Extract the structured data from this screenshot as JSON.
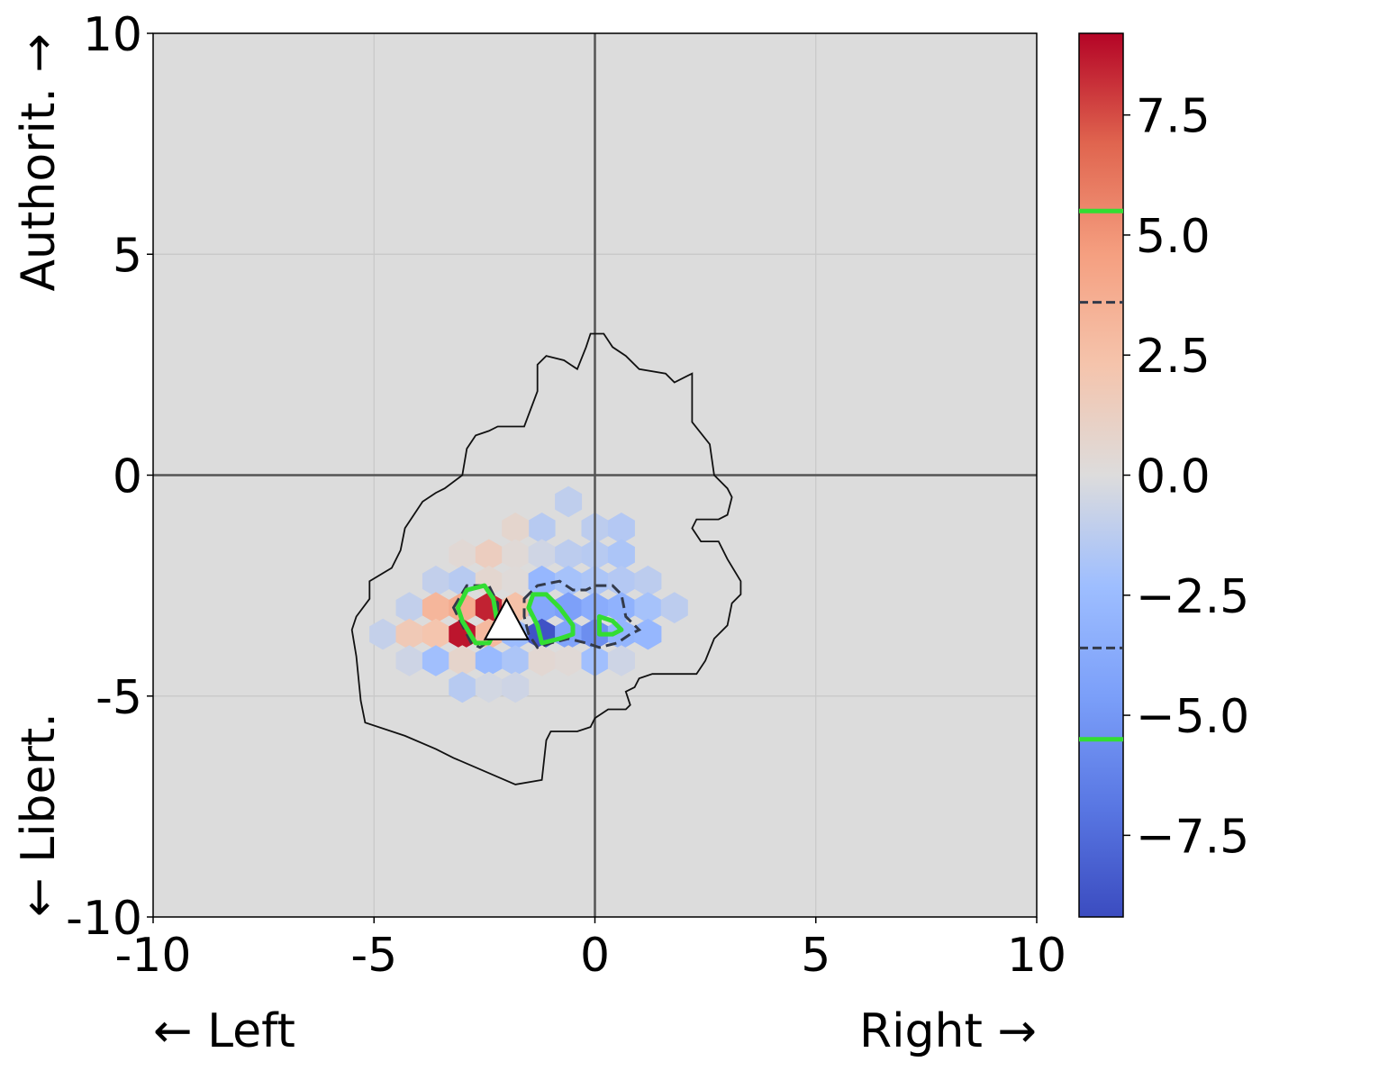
{
  "chart_data": {
    "type": "hexbin",
    "title": "",
    "xlim": [
      -10,
      10
    ],
    "ylim": [
      -10,
      10
    ],
    "grid": true,
    "x_ticks": [
      "-10",
      "-5",
      "0",
      "5",
      "10"
    ],
    "y_ticks": [
      "-10",
      "-5",
      "0",
      "5",
      "10"
    ],
    "x_tick_values": [
      -10,
      -5,
      0,
      5,
      10
    ],
    "y_tick_values": [
      -10,
      -5,
      0,
      5,
      10
    ],
    "xlabel_left": "← Left",
    "xlabel_right": "Right →",
    "ylabel_top": "Authorit. →",
    "ylabel_bottom": "← Libert.",
    "colorbar": {
      "colormap": "coolwarm",
      "range": [
        -9.2,
        9.2
      ],
      "tick_labels": [
        "7.5",
        "5.0",
        "2.5",
        "0.0",
        "−2.5",
        "−5.0",
        "−7.5"
      ],
      "tick_values": [
        7.5,
        5.0,
        2.5,
        0.0,
        -2.5,
        -5.0,
        -7.5
      ],
      "green_levels": [
        5.5,
        -5.5
      ],
      "dashed_levels": [
        3.6,
        -3.6
      ]
    },
    "colors": {
      "background": "#dcdcdc",
      "contour_green": "#33dd33",
      "contour_dashed": "#333a4a",
      "outline": "#111111",
      "axis_lines": "#555555"
    },
    "hexbins": [
      {
        "x": -0.6,
        "y": -0.6,
        "v": -1.1
      },
      {
        "x": -1.2,
        "y": -1.2,
        "v": -1.4
      },
      {
        "x": 0.0,
        "y": -1.2,
        "v": -1.2
      },
      {
        "x": 0.6,
        "y": -1.2,
        "v": -1.5
      },
      {
        "x": -1.8,
        "y": -1.2,
        "v": 0.7
      },
      {
        "x": -3.0,
        "y": -1.8,
        "v": 0.4
      },
      {
        "x": -2.4,
        "y": -1.8,
        "v": 1.4
      },
      {
        "x": -1.8,
        "y": -1.8,
        "v": 0.3
      },
      {
        "x": -1.2,
        "y": -1.8,
        "v": -0.5
      },
      {
        "x": -0.6,
        "y": -1.8,
        "v": -1.2
      },
      {
        "x": 0.0,
        "y": -1.8,
        "v": -1.4
      },
      {
        "x": 0.6,
        "y": -1.8,
        "v": -1.8
      },
      {
        "x": -3.6,
        "y": -2.4,
        "v": -1.0
      },
      {
        "x": -3.0,
        "y": -2.4,
        "v": -1.4
      },
      {
        "x": -2.4,
        "y": -2.4,
        "v": 0.6
      },
      {
        "x": -1.8,
        "y": -2.4,
        "v": 0.2
      },
      {
        "x": -1.2,
        "y": -2.4,
        "v": -2.8
      },
      {
        "x": -0.6,
        "y": -2.4,
        "v": -2.0
      },
      {
        "x": 0.0,
        "y": -2.4,
        "v": -1.8
      },
      {
        "x": 0.6,
        "y": -2.4,
        "v": -1.5
      },
      {
        "x": 1.2,
        "y": -2.4,
        "v": -1.2
      },
      {
        "x": -4.2,
        "y": -3.0,
        "v": -1.0
      },
      {
        "x": -3.6,
        "y": -3.0,
        "v": 3.2
      },
      {
        "x": -3.0,
        "y": -3.0,
        "v": 3.8
      },
      {
        "x": -2.4,
        "y": -3.0,
        "v": 8.5
      },
      {
        "x": -1.8,
        "y": -3.0,
        "v": 2.5
      },
      {
        "x": -1.2,
        "y": -3.0,
        "v": -4.0
      },
      {
        "x": -0.6,
        "y": -3.0,
        "v": -4.5
      },
      {
        "x": 0.0,
        "y": -3.0,
        "v": -3.6
      },
      {
        "x": 0.6,
        "y": -3.0,
        "v": -3.2
      },
      {
        "x": 1.2,
        "y": -3.0,
        "v": -2.0
      },
      {
        "x": 1.8,
        "y": -3.0,
        "v": -1.2
      },
      {
        "x": -4.8,
        "y": -3.6,
        "v": -0.9
      },
      {
        "x": -4.2,
        "y": -3.6,
        "v": 1.8
      },
      {
        "x": -3.6,
        "y": -3.6,
        "v": 2.2
      },
      {
        "x": -3.0,
        "y": -3.6,
        "v": 8.8
      },
      {
        "x": -2.4,
        "y": -3.6,
        "v": 3.0
      },
      {
        "x": -1.8,
        "y": -3.6,
        "v": -2.5
      },
      {
        "x": -1.2,
        "y": -3.6,
        "v": -8.8
      },
      {
        "x": -0.6,
        "y": -3.6,
        "v": -4.2
      },
      {
        "x": 0.0,
        "y": -3.6,
        "v": -5.6
      },
      {
        "x": 0.6,
        "y": -3.6,
        "v": -3.0
      },
      {
        "x": 1.2,
        "y": -3.6,
        "v": -2.8
      },
      {
        "x": -4.2,
        "y": -4.2,
        "v": -0.6
      },
      {
        "x": -3.6,
        "y": -4.2,
        "v": -2.2
      },
      {
        "x": -3.0,
        "y": -4.2,
        "v": 0.8
      },
      {
        "x": -2.4,
        "y": -4.2,
        "v": -2.6
      },
      {
        "x": -1.8,
        "y": -4.2,
        "v": -1.8
      },
      {
        "x": -1.2,
        "y": -4.2,
        "v": 0.5
      },
      {
        "x": -0.6,
        "y": -4.2,
        "v": 0.3
      },
      {
        "x": 0.0,
        "y": -4.2,
        "v": -2.2
      },
      {
        "x": 0.6,
        "y": -4.2,
        "v": -0.6
      },
      {
        "x": -3.0,
        "y": -4.8,
        "v": -1.4
      },
      {
        "x": -2.4,
        "y": -4.8,
        "v": -0.4
      },
      {
        "x": -1.8,
        "y": -4.8,
        "v": -0.6
      }
    ],
    "region_outline": [
      [
        -1.2,
        -6.9
      ],
      [
        -1.8,
        -7.0
      ],
      [
        -3.2,
        -6.4
      ],
      [
        -3.6,
        -6.2
      ],
      [
        -4.3,
        -5.9
      ],
      [
        -5.2,
        -5.6
      ],
      [
        -5.3,
        -5.1
      ],
      [
        -5.4,
        -4.1
      ],
      [
        -5.5,
        -3.5
      ],
      [
        -5.4,
        -3.2
      ],
      [
        -5.1,
        -2.8
      ],
      [
        -5.1,
        -2.4
      ],
      [
        -4.6,
        -2.1
      ],
      [
        -4.4,
        -1.7
      ],
      [
        -4.3,
        -1.2
      ],
      [
        -4.1,
        -0.9
      ],
      [
        -3.9,
        -0.6
      ],
      [
        -3.6,
        -0.4
      ],
      [
        -3.4,
        -0.3
      ],
      [
        -3.0,
        0.0
      ],
      [
        -2.9,
        0.6
      ],
      [
        -2.7,
        0.9
      ],
      [
        -2.4,
        1.0
      ],
      [
        -2.2,
        1.1
      ],
      [
        -1.6,
        1.1
      ],
      [
        -1.3,
        1.9
      ],
      [
        -1.3,
        2.5
      ],
      [
        -1.1,
        2.7
      ],
      [
        -0.7,
        2.6
      ],
      [
        -0.4,
        2.4
      ],
      [
        -0.2,
        2.9
      ],
      [
        -0.1,
        3.2
      ],
      [
        0.2,
        3.2
      ],
      [
        0.4,
        2.9
      ],
      [
        0.7,
        2.7
      ],
      [
        1.0,
        2.4
      ],
      [
        1.6,
        2.3
      ],
      [
        1.8,
        2.1
      ],
      [
        2.2,
        2.3
      ],
      [
        2.2,
        1.2
      ],
      [
        2.6,
        0.7
      ],
      [
        2.7,
        0.0
      ],
      [
        3.0,
        -0.3
      ],
      [
        3.1,
        -0.5
      ],
      [
        3.0,
        -0.9
      ],
      [
        2.8,
        -1.0
      ],
      [
        2.3,
        -1.0
      ],
      [
        2.2,
        -1.2
      ],
      [
        2.4,
        -1.5
      ],
      [
        2.8,
        -1.5
      ],
      [
        3.0,
        -1.9
      ],
      [
        3.3,
        -2.4
      ],
      [
        3.3,
        -2.7
      ],
      [
        3.1,
        -2.9
      ],
      [
        3.0,
        -3.4
      ],
      [
        2.7,
        -3.7
      ],
      [
        2.5,
        -4.2
      ],
      [
        2.3,
        -4.5
      ],
      [
        1.6,
        -4.5
      ],
      [
        1.3,
        -4.5
      ],
      [
        1.0,
        -4.6
      ],
      [
        0.9,
        -4.8
      ],
      [
        0.7,
        -4.9
      ],
      [
        0.8,
        -5.2
      ],
      [
        0.7,
        -5.3
      ],
      [
        0.3,
        -5.3
      ],
      [
        0.0,
        -5.5
      ],
      [
        -0.1,
        -5.7
      ],
      [
        -0.4,
        -5.8
      ],
      [
        -1.0,
        -5.8
      ],
      [
        -1.1,
        -6.0
      ],
      [
        -1.2,
        -6.9
      ]
    ],
    "green_contours": [
      [
        [
          -3.1,
          -3.0
        ],
        [
          -2.9,
          -2.6
        ],
        [
          -2.5,
          -2.5
        ],
        [
          -2.3,
          -2.8
        ],
        [
          -2.2,
          -3.4
        ],
        [
          -2.4,
          -3.8
        ],
        [
          -2.7,
          -3.8
        ],
        [
          -3.0,
          -3.3
        ],
        [
          -3.1,
          -3.0
        ]
      ],
      [
        [
          -1.4,
          -2.7
        ],
        [
          -1.1,
          -2.7
        ],
        [
          -0.8,
          -3.0
        ],
        [
          -0.5,
          -3.4
        ],
        [
          -0.5,
          -3.6
        ],
        [
          -0.8,
          -3.7
        ],
        [
          -1.2,
          -3.8
        ],
        [
          -1.3,
          -3.4
        ],
        [
          -1.5,
          -3.0
        ],
        [
          -1.4,
          -2.7
        ]
      ],
      [
        [
          0.1,
          -3.2
        ],
        [
          0.4,
          -3.3
        ],
        [
          0.6,
          -3.5
        ],
        [
          0.4,
          -3.6
        ],
        [
          0.1,
          -3.6
        ],
        [
          0.1,
          -3.2
        ]
      ]
    ],
    "dashed_contours": [
      [
        [
          -3.2,
          -3.0
        ],
        [
          -2.9,
          -2.5
        ],
        [
          -2.4,
          -2.5
        ],
        [
          -2.2,
          -2.9
        ],
        [
          -2.2,
          -3.6
        ],
        [
          -2.6,
          -3.9
        ],
        [
          -2.8,
          -3.8
        ],
        [
          -3.2,
          -3.0
        ]
      ],
      [
        [
          -1.6,
          -2.8
        ],
        [
          -1.3,
          -2.5
        ],
        [
          -0.8,
          -2.4
        ],
        [
          -0.5,
          -2.6
        ],
        [
          -0.2,
          -2.6
        ],
        [
          0.0,
          -2.5
        ],
        [
          0.4,
          -2.5
        ],
        [
          0.6,
          -2.7
        ],
        [
          0.7,
          -3.2
        ],
        [
          1.0,
          -3.5
        ],
        [
          0.8,
          -3.6
        ],
        [
          0.5,
          -3.8
        ],
        [
          0.1,
          -3.9
        ],
        [
          -0.2,
          -3.8
        ],
        [
          -0.6,
          -3.7
        ],
        [
          -1.0,
          -3.8
        ],
        [
          -1.3,
          -3.9
        ],
        [
          -1.5,
          -3.6
        ],
        [
          -1.6,
          -3.2
        ],
        [
          -1.6,
          -2.8
        ]
      ]
    ],
    "marker": {
      "x": -2.0,
      "y": -3.3,
      "shape": "triangle",
      "color": "#ffffff"
    }
  }
}
